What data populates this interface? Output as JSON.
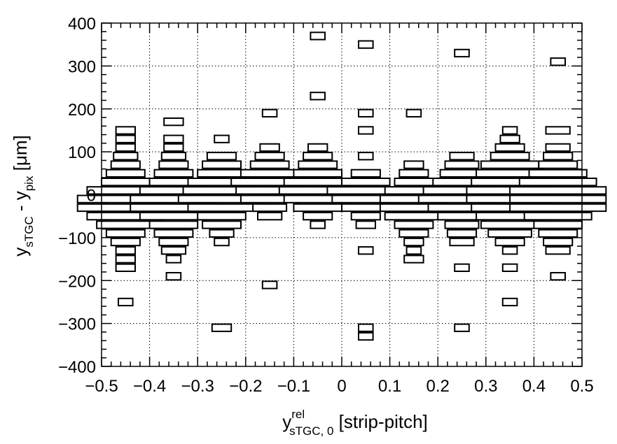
{
  "chart_data": {
    "type": "box-histogram-2d",
    "title": "",
    "xlabel": {
      "base": "y",
      "superscript": "rel",
      "subscript": "sTGC, 0",
      "suffix": " [strip-pitch]"
    },
    "ylabel": {
      "part1_base": "y",
      "part1_sub": "sTGC",
      "separator": " - ",
      "part2_base": "y",
      "part2_sub": "pix",
      "suffix": " [μm]"
    },
    "xlim": [
      -0.5,
      0.5
    ],
    "ylim": [
      -400,
      400
    ],
    "x_ticks": [
      -0.5,
      -0.4,
      -0.3,
      -0.2,
      -0.1,
      0,
      0.1,
      0.2,
      0.3,
      0.4,
      0.5
    ],
    "x_tick_labels": [
      "−0.5",
      "−0.4",
      "−0.3",
      "−0.2",
      "−0.1",
      "0",
      "0.1",
      "0.2",
      "0.3",
      "0.4",
      "0.5"
    ],
    "y_ticks": [
      -400,
      -300,
      -200,
      -100,
      0,
      100,
      200,
      300,
      400
    ],
    "y_tick_labels": [
      "−400",
      "−300",
      "−200",
      "−100",
      "0",
      "100",
      "200",
      "300",
      "400"
    ],
    "grid": true,
    "y_bin_width": 20,
    "columns": [
      {
        "x": -0.45,
        "bins": [
          {
            "y": 150,
            "w": 0.04
          },
          {
            "y": 130,
            "w": 0.04
          },
          {
            "y": 110,
            "w": 0.04
          },
          {
            "y": 90,
            "w": 0.05
          },
          {
            "y": 70,
            "w": 0.06
          },
          {
            "y": 50,
            "w": 0.08
          },
          {
            "y": 30,
            "w": 0.1
          },
          {
            "y": 10,
            "w": 0.16
          },
          {
            "y": -10,
            "w": 0.2
          },
          {
            "y": -30,
            "w": 0.2
          },
          {
            "y": -50,
            "w": 0.16
          },
          {
            "y": -70,
            "w": 0.12
          },
          {
            "y": -90,
            "w": 0.08
          },
          {
            "y": -110,
            "w": 0.06
          },
          {
            "y": -130,
            "w": 0.04
          },
          {
            "y": -150,
            "w": 0.04
          },
          {
            "y": -170,
            "w": 0.04
          },
          {
            "y": -250,
            "w": 0.03
          }
        ]
      },
      {
        "x": -0.35,
        "bins": [
          {
            "y": 170,
            "w": 0.04
          },
          {
            "y": 130,
            "w": 0.04
          },
          {
            "y": 110,
            "w": 0.04
          },
          {
            "y": 90,
            "w": 0.05
          },
          {
            "y": 70,
            "w": 0.06
          },
          {
            "y": 50,
            "w": 0.08
          },
          {
            "y": 30,
            "w": 0.1
          },
          {
            "y": 10,
            "w": 0.14
          },
          {
            "y": -10,
            "w": 0.18
          },
          {
            "y": -30,
            "w": 0.18
          },
          {
            "y": -50,
            "w": 0.14
          },
          {
            "y": -70,
            "w": 0.1
          },
          {
            "y": -90,
            "w": 0.08
          },
          {
            "y": -110,
            "w": 0.06
          },
          {
            "y": -130,
            "w": 0.05
          },
          {
            "y": -150,
            "w": 0.03
          },
          {
            "y": -190,
            "w": 0.03
          }
        ]
      },
      {
        "x": -0.25,
        "bins": [
          {
            "y": 130,
            "w": 0.03
          },
          {
            "y": 90,
            "w": 0.06
          },
          {
            "y": 70,
            "w": 0.08
          },
          {
            "y": 50,
            "w": 0.1
          },
          {
            "y": 30,
            "w": 0.14
          },
          {
            "y": 10,
            "w": 0.16
          },
          {
            "y": -10,
            "w": 0.18
          },
          {
            "y": -30,
            "w": 0.14
          },
          {
            "y": -50,
            "w": 0.1
          },
          {
            "y": -70,
            "w": 0.08
          },
          {
            "y": -90,
            "w": 0.05
          },
          {
            "y": -110,
            "w": 0.03
          },
          {
            "y": -310,
            "w": 0.04
          }
        ]
      },
      {
        "x": -0.15,
        "bins": [
          {
            "y": 190,
            "w": 0.03
          },
          {
            "y": 110,
            "w": 0.04
          },
          {
            "y": 90,
            "w": 0.06
          },
          {
            "y": 70,
            "w": 0.08
          },
          {
            "y": 50,
            "w": 0.12
          },
          {
            "y": 30,
            "w": 0.16
          },
          {
            "y": 10,
            "w": 0.14
          },
          {
            "y": -10,
            "w": 0.12
          },
          {
            "y": -30,
            "w": 0.07
          },
          {
            "y": -50,
            "w": 0.05
          },
          {
            "y": -210,
            "w": 0.03
          }
        ]
      },
      {
        "x": -0.05,
        "bins": [
          {
            "y": 370,
            "w": 0.03
          },
          {
            "y": 230,
            "w": 0.03
          },
          {
            "y": 110,
            "w": 0.04
          },
          {
            "y": 90,
            "w": 0.06
          },
          {
            "y": 70,
            "w": 0.08
          },
          {
            "y": 50,
            "w": 0.1
          },
          {
            "y": 30,
            "w": 0.14
          },
          {
            "y": 10,
            "w": 0.16
          },
          {
            "y": -10,
            "w": 0.14
          },
          {
            "y": -30,
            "w": 0.1
          },
          {
            "y": -50,
            "w": 0.06
          },
          {
            "y": -70,
            "w": 0.03
          }
        ]
      },
      {
        "x": 0.05,
        "bins": [
          {
            "y": 350,
            "w": 0.03
          },
          {
            "y": 190,
            "w": 0.03
          },
          {
            "y": 150,
            "w": 0.03
          },
          {
            "y": 90,
            "w": 0.03
          },
          {
            "y": 50,
            "w": 0.06
          },
          {
            "y": 30,
            "w": 0.1
          },
          {
            "y": 10,
            "w": 0.16
          },
          {
            "y": -10,
            "w": 0.14
          },
          {
            "y": -30,
            "w": 0.1
          },
          {
            "y": -50,
            "w": 0.06
          },
          {
            "y": -70,
            "w": 0.04
          },
          {
            "y": -130,
            "w": 0.03
          },
          {
            "y": -310,
            "w": 0.03
          },
          {
            "y": -330,
            "w": 0.03
          }
        ]
      },
      {
        "x": 0.15,
        "bins": [
          {
            "y": 190,
            "w": 0.03
          },
          {
            "y": 70,
            "w": 0.04
          },
          {
            "y": 50,
            "w": 0.06
          },
          {
            "y": 30,
            "w": 0.08
          },
          {
            "y": 10,
            "w": 0.12
          },
          {
            "y": -10,
            "w": 0.14
          },
          {
            "y": -30,
            "w": 0.14
          },
          {
            "y": -50,
            "w": 0.12
          },
          {
            "y": -70,
            "w": 0.08
          },
          {
            "y": -90,
            "w": 0.06
          },
          {
            "y": -110,
            "w": 0.04
          },
          {
            "y": -130,
            "w": 0.03
          },
          {
            "y": -150,
            "w": 0.04
          }
        ]
      },
      {
        "x": 0.25,
        "bins": [
          {
            "y": 330,
            "w": 0.03
          },
          {
            "y": 90,
            "w": 0.05
          },
          {
            "y": 70,
            "w": 0.07
          },
          {
            "y": 50,
            "w": 0.09
          },
          {
            "y": 30,
            "w": 0.12
          },
          {
            "y": 10,
            "w": 0.16
          },
          {
            "y": -10,
            "w": 0.18
          },
          {
            "y": -30,
            "w": 0.14
          },
          {
            "y": -50,
            "w": 0.1
          },
          {
            "y": -70,
            "w": 0.07
          },
          {
            "y": -90,
            "w": 0.06
          },
          {
            "y": -110,
            "w": 0.05
          },
          {
            "y": -170,
            "w": 0.03
          },
          {
            "y": -310,
            "w": 0.03
          }
        ]
      },
      {
        "x": 0.35,
        "bins": [
          {
            "y": 150,
            "w": 0.03
          },
          {
            "y": 130,
            "w": 0.04
          },
          {
            "y": 110,
            "w": 0.06
          },
          {
            "y": 90,
            "w": 0.08
          },
          {
            "y": 70,
            "w": 0.12
          },
          {
            "y": 50,
            "w": 0.14
          },
          {
            "y": 30,
            "w": 0.16
          },
          {
            "y": 10,
            "w": 0.18
          },
          {
            "y": -10,
            "w": 0.18
          },
          {
            "y": -30,
            "w": 0.16
          },
          {
            "y": -50,
            "w": 0.14
          },
          {
            "y": -70,
            "w": 0.12
          },
          {
            "y": -90,
            "w": 0.09
          },
          {
            "y": -110,
            "w": 0.06
          },
          {
            "y": -130,
            "w": 0.03
          },
          {
            "y": -170,
            "w": 0.03
          },
          {
            "y": -250,
            "w": 0.03
          }
        ]
      },
      {
        "x": 0.45,
        "bins": [
          {
            "y": 310,
            "w": 0.03
          },
          {
            "y": 150,
            "w": 0.05
          },
          {
            "y": 110,
            "w": 0.05
          },
          {
            "y": 90,
            "w": 0.06
          },
          {
            "y": 70,
            "w": 0.08
          },
          {
            "y": 50,
            "w": 0.12
          },
          {
            "y": 30,
            "w": 0.16
          },
          {
            "y": 10,
            "w": 0.2
          },
          {
            "y": -10,
            "w": 0.2
          },
          {
            "y": -30,
            "w": 0.2
          },
          {
            "y": -50,
            "w": 0.14
          },
          {
            "y": -70,
            "w": 0.1
          },
          {
            "y": -90,
            "w": 0.08
          },
          {
            "y": -110,
            "w": 0.06
          },
          {
            "y": -130,
            "w": 0.05
          },
          {
            "y": -190,
            "w": 0.03
          }
        ]
      }
    ]
  }
}
